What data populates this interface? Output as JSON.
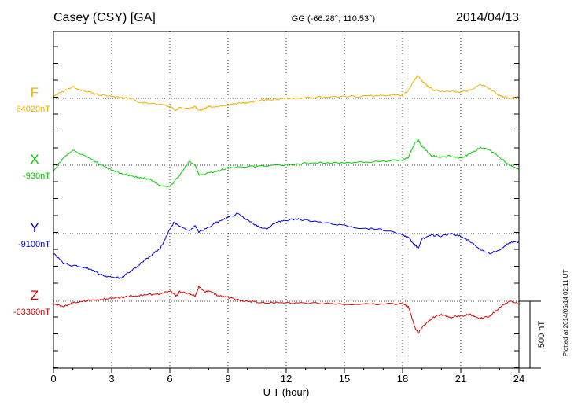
{
  "header": {
    "station": "Casey (CSY)  [GA]",
    "coords": "GG (-66.28°, 110.53°)",
    "date": "2014/04/13"
  },
  "footer_note": "Plotted at 2014/05/14 02:11  UT",
  "scale_bar_label": "500 nT",
  "chart_data": {
    "type": "line",
    "title": "Casey (CSY)  [GA]",
    "xlabel": "U T (hour)",
    "ylabel": "",
    "xlim": [
      0,
      24
    ],
    "x_ticks": [
      "0",
      "3",
      "6",
      "9",
      "12",
      "15",
      "18",
      "21",
      "24"
    ],
    "scale_bar_nT": 500,
    "grid": true,
    "series": [
      {
        "name": "F",
        "baseline_label": "64020nT",
        "color": "#f0b000",
        "x": [
          0,
          0.5,
          1,
          1.5,
          2,
          2.5,
          3,
          3.5,
          4,
          4.5,
          5,
          5.5,
          6,
          6.3,
          6.5,
          7,
          7.3,
          7.5,
          7.8,
          8,
          8.5,
          9,
          9.5,
          10,
          10.5,
          11,
          11.5,
          12,
          13,
          14,
          15,
          16,
          17,
          18,
          18.3,
          18.6,
          18.8,
          19,
          19.3,
          19.6,
          20,
          20.5,
          21,
          21.5,
          22,
          22.5,
          23,
          23.5,
          24
        ],
        "y": [
          15,
          50,
          85,
          60,
          40,
          25,
          10,
          5,
          0,
          -30,
          -40,
          -45,
          -60,
          -90,
          -70,
          -80,
          -60,
          -90,
          -75,
          -60,
          -65,
          -50,
          -40,
          -35,
          -20,
          -10,
          -5,
          0,
          5,
          10,
          15,
          15,
          20,
          25,
          60,
          140,
          170,
          130,
          90,
          60,
          55,
          50,
          45,
          60,
          110,
          70,
          20,
          0,
          10
        ]
      },
      {
        "name": "X",
        "baseline_label": "-930nT",
        "color": "#00cc00",
        "x": [
          0,
          0.5,
          1,
          1.5,
          2,
          2.5,
          3,
          3.5,
          4,
          4.5,
          5,
          5.5,
          6,
          6.5,
          7,
          7.3,
          7.5,
          8,
          8.5,
          9,
          10,
          11,
          12,
          13,
          14,
          15,
          16,
          17,
          18,
          18.3,
          18.6,
          18.8,
          19,
          19.5,
          20,
          20.5,
          21,
          21.5,
          22,
          22.5,
          23,
          23.5,
          24
        ],
        "y": [
          -40,
          50,
          110,
          80,
          40,
          0,
          -40,
          -60,
          -80,
          -90,
          -110,
          -150,
          -160,
          -80,
          30,
          0,
          -70,
          -60,
          -40,
          -20,
          -10,
          -5,
          0,
          15,
          20,
          20,
          25,
          30,
          40,
          60,
          160,
          190,
          140,
          70,
          60,
          70,
          50,
          90,
          130,
          110,
          60,
          0,
          -30
        ]
      },
      {
        "name": "Y",
        "baseline_label": "-9100nT",
        "color": "#0000dd",
        "x": [
          0,
          0.5,
          1,
          1.5,
          2,
          2.5,
          3,
          3.5,
          4,
          4.5,
          5,
          5.5,
          6,
          6.2,
          6.5,
          7,
          7.3,
          7.5,
          8,
          8.5,
          9,
          9.5,
          10,
          10.5,
          11,
          11.5,
          12,
          12.5,
          13,
          14,
          15,
          16,
          17,
          18,
          18.3,
          18.6,
          18.8,
          19,
          19.5,
          20,
          20.5,
          21,
          21.5,
          22,
          22.5,
          23,
          23.5,
          24
        ],
        "y": [
          -150,
          -220,
          -240,
          -250,
          -270,
          -310,
          -330,
          -330,
          -280,
          -220,
          -170,
          -110,
          30,
          80,
          60,
          20,
          60,
          10,
          50,
          90,
          120,
          150,
          100,
          60,
          30,
          90,
          100,
          110,
          100,
          80,
          60,
          40,
          30,
          -10,
          -30,
          -80,
          -110,
          -40,
          -10,
          -20,
          0,
          -20,
          -60,
          -120,
          -150,
          -120,
          -70,
          -60
        ]
      },
      {
        "name": "Z",
        "baseline_label": "-63360nT",
        "color": "#dd0000",
        "x": [
          0,
          0.5,
          1,
          1.5,
          2,
          2.5,
          3,
          3.5,
          4,
          4.5,
          5,
          5.5,
          6,
          6.3,
          6.5,
          7,
          7.3,
          7.5,
          7.8,
          8,
          8.5,
          9,
          9.5,
          10,
          10.5,
          11,
          12,
          13,
          14,
          15,
          16,
          17,
          18,
          18.3,
          18.6,
          18.8,
          19,
          19.3,
          19.6,
          20,
          20.5,
          21,
          21.5,
          22,
          22.5,
          23,
          23.5,
          24
        ],
        "y": [
          -20,
          -40,
          -10,
          0,
          10,
          15,
          20,
          30,
          40,
          45,
          50,
          55,
          80,
          40,
          70,
          60,
          40,
          110,
          70,
          80,
          40,
          30,
          10,
          0,
          -5,
          -10,
          -10,
          -15,
          -15,
          -20,
          -20,
          -20,
          -20,
          -40,
          -180,
          -240,
          -200,
          -150,
          -120,
          -100,
          -120,
          -110,
          -100,
          -130,
          -110,
          -50,
          0,
          -20
        ]
      }
    ]
  }
}
